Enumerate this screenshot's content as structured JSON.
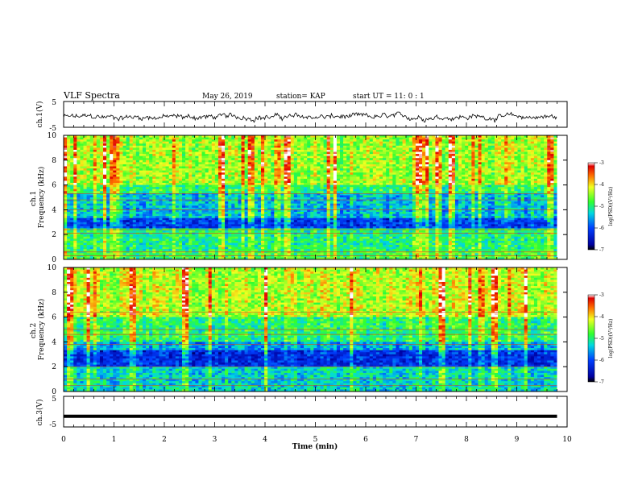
{
  "header": {
    "title": "VLF Spectra",
    "date": "May 26, 2019",
    "station": "station= KAP",
    "start_ut": "start  UT =   11: 0  : 1"
  },
  "chart_data": [
    {
      "type": "line",
      "ylabel": "ch.1(V)",
      "ylim": [
        -5,
        5
      ],
      "ytick_labels": [
        "5",
        "-5"
      ],
      "description_values": "noisy waveform centered near -1 V",
      "xlim": [
        0,
        10
      ]
    },
    {
      "type": "heatmap",
      "ylabel": "ch.1\nFrequency (kHz)",
      "ylabel_lines": [
        "ch.1",
        "Frequency  (kHz)"
      ],
      "ylim": [
        0,
        10
      ],
      "ytick_labels": [
        "0",
        "2",
        "4",
        "6",
        "8",
        "10"
      ],
      "xlim": [
        0,
        9.8
      ],
      "colorbar": {
        "label": "log(PSD)(V²/Hz)",
        "range": [
          -7,
          -3
        ],
        "tick_labels": [
          "-3",
          "-4",
          "-5",
          "-6",
          "-7"
        ]
      }
    },
    {
      "type": "heatmap",
      "ylabel": "ch.2\nFrequency (kHz)",
      "ylabel_lines": [
        "ch.2",
        "Frequency  (kHz)"
      ],
      "ylim": [
        0,
        10
      ],
      "ytick_labels": [
        "0",
        "2",
        "4",
        "6",
        "8",
        "10"
      ],
      "xlim": [
        0,
        9.8
      ],
      "colorbar": {
        "label": "log(PSD)(V²/Hz)",
        "range": [
          -7,
          -3
        ],
        "tick_labels": [
          "-3",
          "-4",
          "-5",
          "-6",
          "-7"
        ]
      }
    },
    {
      "type": "line",
      "ylabel": "ch.3(V)",
      "ylim": [
        -5,
        5
      ],
      "ytick_labels": [
        "5",
        "-5"
      ],
      "x": [
        0,
        9.8
      ],
      "y": [
        -1.5,
        -1.5
      ],
      "xlabel": "Time  (min)",
      "xtick_labels": [
        "0",
        "1",
        "2",
        "3",
        "4",
        "5",
        "6",
        "7",
        "8",
        "9",
        "10"
      ],
      "xlim": [
        0,
        10
      ]
    }
  ]
}
